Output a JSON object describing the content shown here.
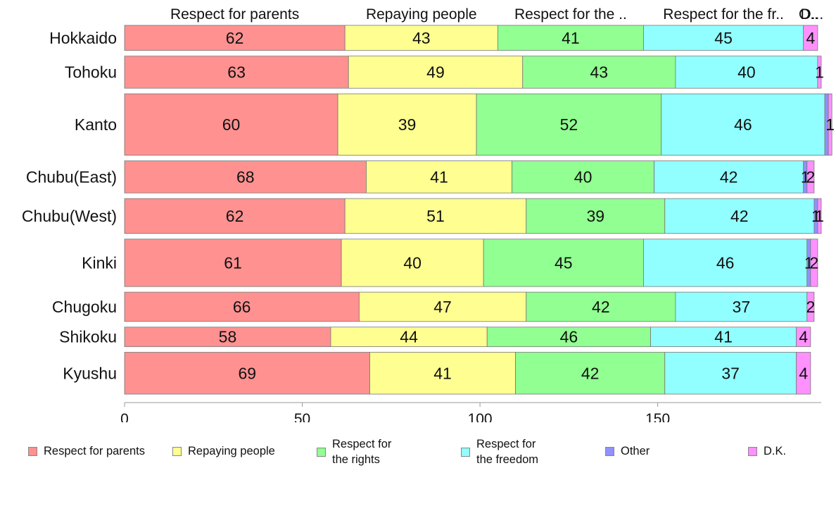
{
  "chart_data": {
    "type": "bar",
    "orientation": "horizontal",
    "stacked": true,
    "categories": [
      "Hokkaido",
      "Tohoku",
      "Kanto",
      "Chubu(East)",
      "Chubu(West)",
      "Kinki",
      "Chugoku",
      "Shikoku",
      "Kyushu"
    ],
    "series": [
      {
        "name": "Respect for parents",
        "values": [
          62,
          63,
          60,
          68,
          62,
          61,
          66,
          58,
          69
        ]
      },
      {
        "name": "Repaying people",
        "values": [
          43,
          49,
          39,
          41,
          51,
          40,
          47,
          44,
          41
        ]
      },
      {
        "name": "Respect for the rights",
        "values": [
          41,
          43,
          52,
          40,
          39,
          45,
          42,
          46,
          42
        ]
      },
      {
        "name": "Respect for the freedom",
        "values": [
          45,
          40,
          46,
          42,
          42,
          46,
          37,
          41,
          37
        ]
      },
      {
        "name": "Other",
        "values": [
          0,
          0,
          1,
          1,
          1,
          1,
          0,
          0,
          0
        ]
      },
      {
        "name": "D.K.",
        "values": [
          4,
          1,
          1,
          2,
          1,
          2,
          2,
          4,
          4
        ]
      }
    ],
    "segment_labels": [
      [
        "62",
        "43",
        "41",
        "45",
        "",
        "4"
      ],
      [
        "63",
        "49",
        "43",
        "40",
        "",
        "1"
      ],
      [
        "60",
        "39",
        "52",
        "46",
        "",
        "1"
      ],
      [
        "68",
        "41",
        "40",
        "42",
        "1",
        "2"
      ],
      [
        "62",
        "51",
        "39",
        "42",
        "1",
        "1"
      ],
      [
        "61",
        "40",
        "45",
        "46",
        "1",
        "2"
      ],
      [
        "66",
        "47",
        "42",
        "37",
        "",
        "2"
      ],
      [
        "58",
        "44",
        "46",
        "41",
        "",
        "4"
      ],
      [
        "69",
        "41",
        "42",
        "37",
        "",
        "4"
      ]
    ],
    "row_weights": [
      18,
      23,
      44,
      23,
      25,
      34,
      21,
      14,
      30
    ],
    "top_labels": [
      "Respect for parents",
      "Repaying people",
      "Respect for the ..",
      "Respect for the fr..",
      "O..",
      "D..."
    ],
    "xticks": [
      0,
      50,
      100,
      150
    ],
    "xlim": [
      0,
      196
    ],
    "colors": [
      "#ff9191",
      "#ffff91",
      "#91ff91",
      "#91ffff",
      "#9191ff",
      "#ff91ff"
    ],
    "legend": [
      "Respect for parents",
      "Repaying people",
      "Respect for\nthe rights",
      "Respect for\nthe freedom",
      "Other",
      "D.K."
    ],
    "legend_position": "bottom",
    "grid": false,
    "title": "",
    "xlabel": "",
    "ylabel": ""
  }
}
